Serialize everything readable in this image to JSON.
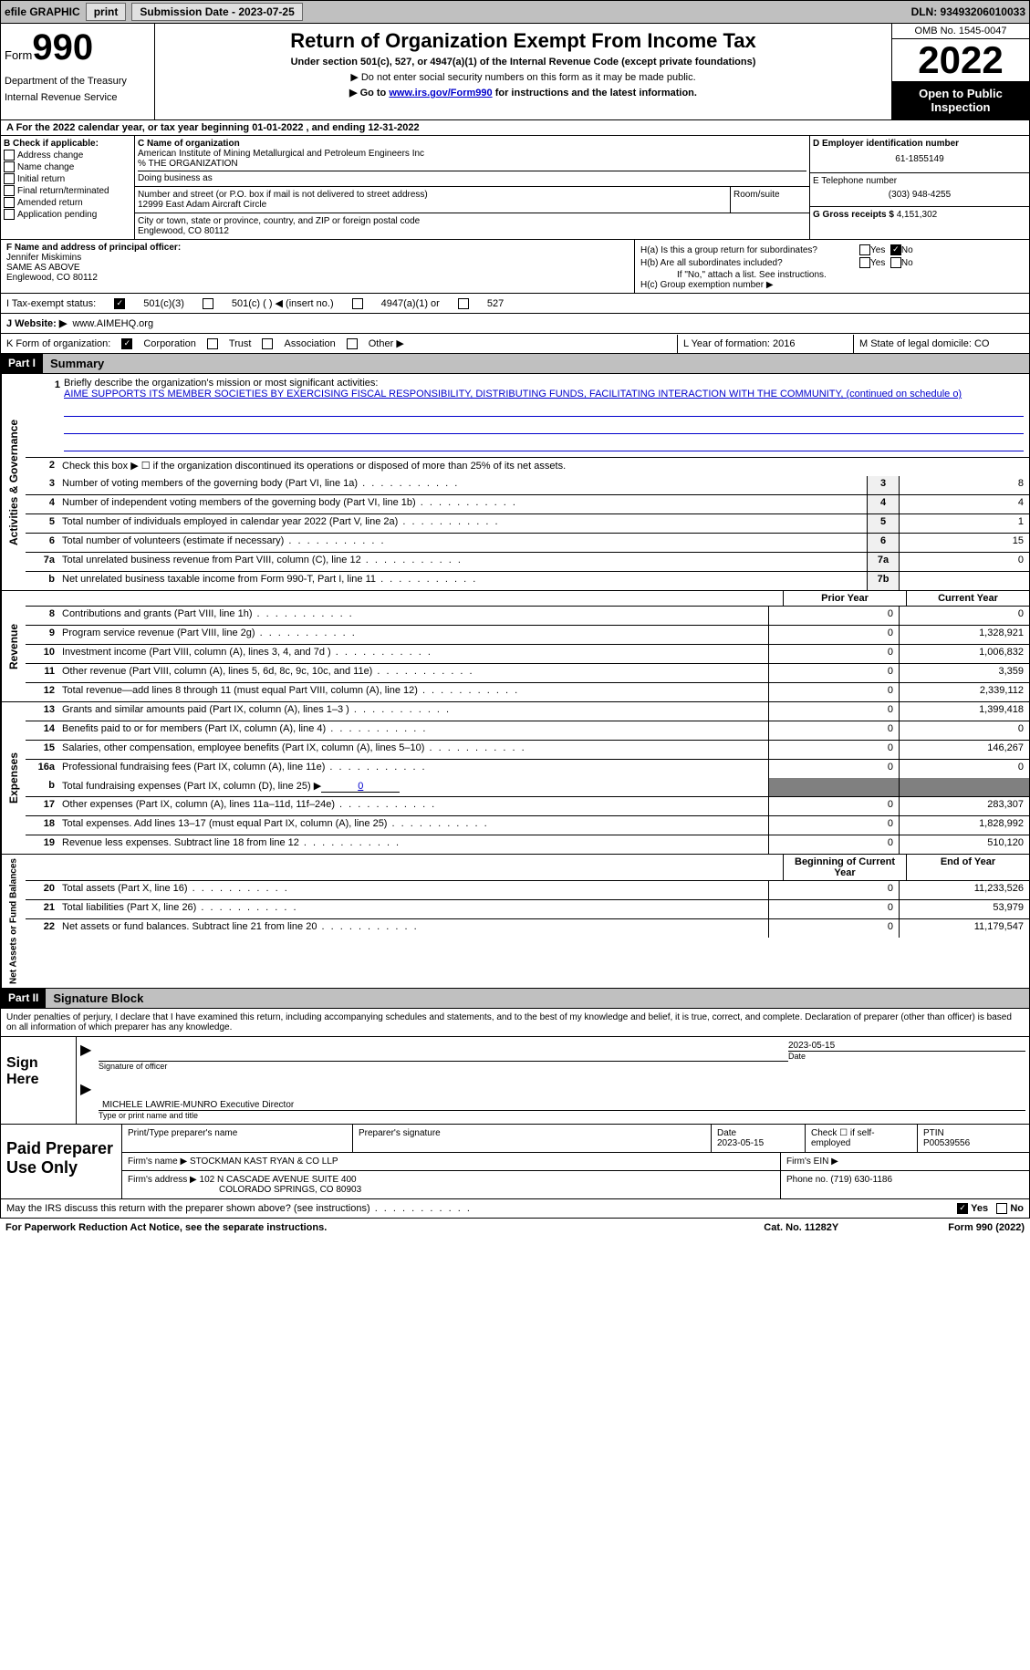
{
  "topbar": {
    "efile": "efile GRAPHIC",
    "print": "print",
    "sub_label": "Submission Date - 2023-07-25",
    "dln": "DLN: 93493206010033"
  },
  "header": {
    "form_word": "Form",
    "form_num": "990",
    "title": "Return of Organization Exempt From Income Tax",
    "subtitle": "Under section 501(c), 527, or 4947(a)(1) of the Internal Revenue Code (except private foundations)",
    "instr1": "▶ Do not enter social security numbers on this form as it may be made public.",
    "instr2_pre": "▶ Go to ",
    "instr2_link": "www.irs.gov/Form990",
    "instr2_post": " for instructions and the latest information.",
    "dept": "Department of the Treasury",
    "irs": "Internal Revenue Service",
    "omb": "OMB No. 1545-0047",
    "year": "2022",
    "open": "Open to Public Inspection"
  },
  "line_a": "A For the 2022 calendar year, or tax year beginning 01-01-2022    , and ending 12-31-2022",
  "box_b": {
    "header": "B Check if applicable:",
    "items": [
      "Address change",
      "Name change",
      "Initial return",
      "Final return/terminated",
      "Amended return",
      "Application pending"
    ]
  },
  "box_c": {
    "label": "C Name of organization",
    "name": "American Institute of Mining Metallurgical and Petroleum Engineers Inc",
    "care": "% THE ORGANIZATION",
    "dba_label": "Doing business as",
    "addr_label": "Number and street (or P.O. box if mail is not delivered to street address)",
    "room_label": "Room/suite",
    "addr": "12999 East Adam Aircraft Circle",
    "city_label": "City or town, state or province, country, and ZIP or foreign postal code",
    "city": "Englewood, CO  80112"
  },
  "box_d": {
    "label": "D Employer identification number",
    "value": "61-1855149"
  },
  "box_e": {
    "label": "E Telephone number",
    "value": "(303) 948-4255"
  },
  "box_g": {
    "label": "G Gross receipts $",
    "value": "4,151,302"
  },
  "box_f": {
    "label": "F Name and address of principal officer:",
    "name": "Jennifer Miskimins",
    "addr1": "SAME AS ABOVE",
    "addr2": "Englewood, CO  80112"
  },
  "box_h": {
    "a": "H(a)  Is this a group return for subordinates?",
    "b": "H(b)  Are all subordinates included?",
    "b_note": "If \"No,\" attach a list. See instructions.",
    "c": "H(c)  Group exemption number ▶",
    "yes": "Yes",
    "no": "No"
  },
  "box_i": {
    "label": "I   Tax-exempt status:",
    "opt1": "501(c)(3)",
    "opt2": "501(c) (  ) ◀ (insert no.)",
    "opt3": "4947(a)(1) or",
    "opt4": "527"
  },
  "box_j": {
    "label": "J   Website: ▶",
    "value": "www.AIMEHQ.org"
  },
  "box_k": {
    "label": "K Form of organization:",
    "opts": [
      "Corporation",
      "Trust",
      "Association",
      "Other ▶"
    ]
  },
  "box_l": {
    "label": "L Year of formation: 2016"
  },
  "box_m": {
    "label": "M State of legal domicile: CO"
  },
  "part1": {
    "tag": "Part I",
    "title": "Summary"
  },
  "mission": {
    "num": "1",
    "label": "Briefly describe the organization's mission or most significant activities:",
    "text": "AIME SUPPORTS ITS MEMBER SOCIETIES BY EXERCISING FISCAL RESPONSIBILITY, DISTRIBUTING FUNDS, FACILITATING INTERACTION WITH THE COMMUNITY, (continued on schedule o)"
  },
  "line2": {
    "num": "2",
    "text": "Check this box ▶ ☐ if the organization discontinued its operations or disposed of more than 25% of its net assets."
  },
  "vert_labels": {
    "gov": "Activities & Governance",
    "rev": "Revenue",
    "exp": "Expenses",
    "net": "Net Assets or Fund Balances"
  },
  "gov_lines": [
    {
      "n": "3",
      "d": "Number of voting members of the governing body (Part VI, line 1a)",
      "box": "3",
      "v": "8"
    },
    {
      "n": "4",
      "d": "Number of independent voting members of the governing body (Part VI, line 1b)",
      "box": "4",
      "v": "4"
    },
    {
      "n": "5",
      "d": "Total number of individuals employed in calendar year 2022 (Part V, line 2a)",
      "box": "5",
      "v": "1"
    },
    {
      "n": "6",
      "d": "Total number of volunteers (estimate if necessary)",
      "box": "6",
      "v": "15"
    },
    {
      "n": "7a",
      "d": "Total unrelated business revenue from Part VIII, column (C), line 12",
      "box": "7a",
      "v": "0"
    },
    {
      "n": "b",
      "d": "Net unrelated business taxable income from Form 990-T, Part I, line 11",
      "box": "7b",
      "v": ""
    }
  ],
  "col_headers": {
    "prior": "Prior Year",
    "current": "Current Year",
    "begin": "Beginning of Current Year",
    "end": "End of Year"
  },
  "rev_lines": [
    {
      "n": "8",
      "d": "Contributions and grants (Part VIII, line 1h)",
      "p": "0",
      "c": "0"
    },
    {
      "n": "9",
      "d": "Program service revenue (Part VIII, line 2g)",
      "p": "0",
      "c": "1,328,921"
    },
    {
      "n": "10",
      "d": "Investment income (Part VIII, column (A), lines 3, 4, and 7d )",
      "p": "0",
      "c": "1,006,832"
    },
    {
      "n": "11",
      "d": "Other revenue (Part VIII, column (A), lines 5, 6d, 8c, 9c, 10c, and 11e)",
      "p": "0",
      "c": "3,359"
    },
    {
      "n": "12",
      "d": "Total revenue—add lines 8 through 11 (must equal Part VIII, column (A), line 12)",
      "p": "0",
      "c": "2,339,112"
    }
  ],
  "exp_lines": [
    {
      "n": "13",
      "d": "Grants and similar amounts paid (Part IX, column (A), lines 1–3 )",
      "p": "0",
      "c": "1,399,418"
    },
    {
      "n": "14",
      "d": "Benefits paid to or for members (Part IX, column (A), line 4)",
      "p": "0",
      "c": "0"
    },
    {
      "n": "15",
      "d": "Salaries, other compensation, employee benefits (Part IX, column (A), lines 5–10)",
      "p": "0",
      "c": "146,267"
    },
    {
      "n": "16a",
      "d": "Professional fundraising fees (Part IX, column (A), line 11e)",
      "p": "0",
      "c": "0"
    }
  ],
  "line16b": {
    "n": "b",
    "d": "Total fundraising expenses (Part IX, column (D), line 25) ▶",
    "v": "0"
  },
  "exp_lines2": [
    {
      "n": "17",
      "d": "Other expenses (Part IX, column (A), lines 11a–11d, 11f–24e)",
      "p": "0",
      "c": "283,307"
    },
    {
      "n": "18",
      "d": "Total expenses. Add lines 13–17 (must equal Part IX, column (A), line 25)",
      "p": "0",
      "c": "1,828,992"
    },
    {
      "n": "19",
      "d": "Revenue less expenses. Subtract line 18 from line 12",
      "p": "0",
      "c": "510,120"
    }
  ],
  "net_lines": [
    {
      "n": "20",
      "d": "Total assets (Part X, line 16)",
      "p": "0",
      "c": "11,233,526"
    },
    {
      "n": "21",
      "d": "Total liabilities (Part X, line 26)",
      "p": "0",
      "c": "53,979"
    },
    {
      "n": "22",
      "d": "Net assets or fund balances. Subtract line 21 from line 20",
      "p": "0",
      "c": "11,179,547"
    }
  ],
  "part2": {
    "tag": "Part II",
    "title": "Signature Block"
  },
  "sig": {
    "declare": "Under penalties of perjury, I declare that I have examined this return, including accompanying schedules and statements, and to the best of my knowledge and belief, it is true, correct, and complete. Declaration of preparer (other than officer) is based on all information of which preparer has any knowledge.",
    "sign_here": "Sign Here",
    "sig_officer": "Signature of officer",
    "date": "Date",
    "date_val": "2023-05-15",
    "name": "MICHELE LAWRIE-MUNRO  Executive Director",
    "name_label": "Type or print name and title"
  },
  "paid": {
    "label": "Paid Preparer Use Only",
    "print_name": "Print/Type preparer's name",
    "prep_sig": "Preparer's signature",
    "date_label": "Date",
    "date": "2023-05-15",
    "check": "Check ☐ if self-employed",
    "ptin_label": "PTIN",
    "ptin": "P00539556",
    "firm_name_label": "Firm's name    ▶",
    "firm_name": "STOCKMAN KAST RYAN & CO LLP",
    "firm_ein_label": "Firm's EIN ▶",
    "firm_addr_label": "Firm's address ▶",
    "firm_addr": "102 N CASCADE AVENUE SUITE 400",
    "firm_city": "COLORADO SPRINGS, CO  80903",
    "phone_label": "Phone no.",
    "phone": "(719) 630-1186"
  },
  "footer": {
    "discuss": "May the IRS discuss this return with the preparer shown above? (see instructions)",
    "yes": "Yes",
    "no": "No",
    "paperwork": "For Paperwork Reduction Act Notice, see the separate instructions.",
    "cat": "Cat. No. 11282Y",
    "form": "Form 990 (2022)"
  }
}
